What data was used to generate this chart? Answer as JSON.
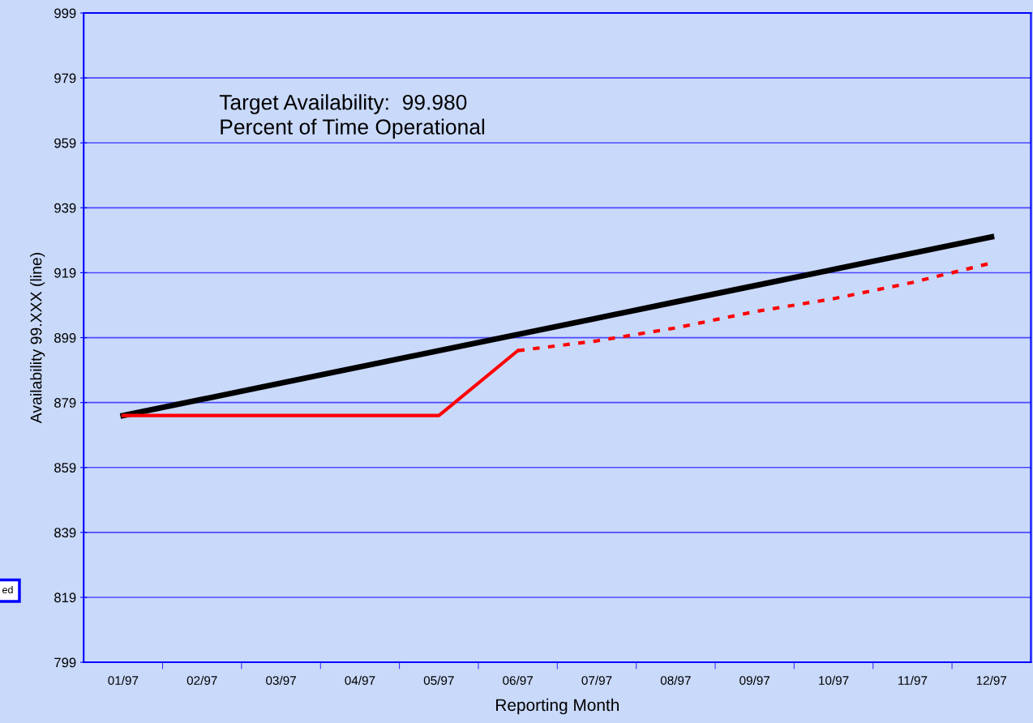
{
  "chart_data": {
    "type": "line",
    "xlabel": "Reporting Month",
    "ylabel": "Availability 99.XXX (line)",
    "categories": [
      "01/97",
      "02/97",
      "03/97",
      "04/97",
      "05/97",
      "06/97",
      "07/97",
      "08/97",
      "09/97",
      "10/97",
      "11/97",
      "12/97"
    ],
    "series": [
      {
        "color": "#000000",
        "line_style": "solid",
        "values": [
          875,
          880,
          885,
          890,
          895,
          900,
          905,
          910,
          915,
          920,
          925,
          930
        ]
      },
      {
        "color": "#ff0000",
        "line_style": "solid",
        "values": [
          875,
          875,
          875,
          875,
          875,
          895,
          null,
          null,
          null,
          null,
          null,
          null
        ]
      },
      {
        "color": "#ff0000",
        "line_style": "dotted",
        "values": [
          null,
          null,
          null,
          null,
          null,
          895,
          898,
          902,
          907,
          911,
          916,
          922
        ]
      }
    ],
    "ylim": [
      799,
      999
    ],
    "yticks": [
      799,
      819,
      839,
      859,
      879,
      899,
      919,
      939,
      959,
      979,
      999
    ],
    "grid": "y",
    "marker": "none",
    "annotations": [
      "Target Availability:  99.980\nPercent of Time Operational",
      "ed"
    ]
  }
}
